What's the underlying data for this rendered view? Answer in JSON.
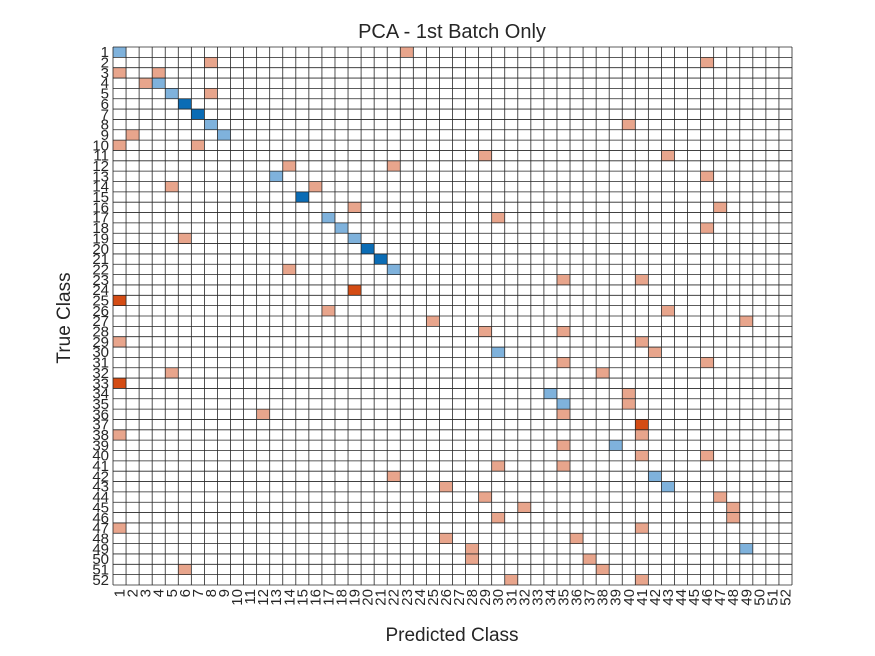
{
  "chart_data": {
    "type": "heatmap",
    "title": "PCA - 1st Batch Only",
    "xlabel": "Predicted Class",
    "ylabel": "True Class",
    "n_classes": 52,
    "x_ticks": [
      "1",
      "2",
      "3",
      "4",
      "5",
      "6",
      "7",
      "8",
      "9",
      "10",
      "11",
      "12",
      "13",
      "14",
      "15",
      "16",
      "17",
      "18",
      "19",
      "20",
      "21",
      "22",
      "23",
      "24",
      "25",
      "26",
      "27",
      "28",
      "29",
      "30",
      "31",
      "32",
      "33",
      "34",
      "35",
      "36",
      "37",
      "38",
      "39",
      "40",
      "41",
      "42",
      "43",
      "44",
      "45",
      "46",
      "47",
      "48",
      "49",
      "50",
      "51",
      "52"
    ],
    "y_ticks": [
      "1",
      "2",
      "3",
      "4",
      "5",
      "6",
      "7",
      "8",
      "9",
      "10",
      "11",
      "12",
      "13",
      "14",
      "15",
      "16",
      "17",
      "18",
      "19",
      "20",
      "21",
      "22",
      "23",
      "24",
      "25",
      "26",
      "27",
      "28",
      "29",
      "30",
      "31",
      "32",
      "33",
      "34",
      "35",
      "36",
      "37",
      "38",
      "39",
      "40",
      "41",
      "42",
      "43",
      "44",
      "45",
      "46",
      "47",
      "48",
      "49",
      "50",
      "51",
      "52"
    ],
    "grid": true,
    "colors": {
      "correct": [
        "#ffffff",
        "#7fb2dc",
        "#5a9fd4",
        "#0a6cb5"
      ],
      "wrong": [
        "#ffffff",
        "#e8a58c",
        "#d66a3e",
        "#d44c14"
      ],
      "gridline": "#262626"
    },
    "cells": [
      {
        "true": 1,
        "pred": 1,
        "level": 1
      },
      {
        "true": 1,
        "pred": 23,
        "level": 1
      },
      {
        "true": 2,
        "pred": 8,
        "level": 1
      },
      {
        "true": 2,
        "pred": 46,
        "level": 1
      },
      {
        "true": 3,
        "pred": 1,
        "level": 1
      },
      {
        "true": 3,
        "pred": 4,
        "level": 1
      },
      {
        "true": 4,
        "pred": 3,
        "level": 1
      },
      {
        "true": 4,
        "pred": 4,
        "level": 1
      },
      {
        "true": 5,
        "pred": 5,
        "level": 1
      },
      {
        "true": 5,
        "pred": 8,
        "level": 1
      },
      {
        "true": 6,
        "pred": 6,
        "level": 3
      },
      {
        "true": 7,
        "pred": 7,
        "level": 3
      },
      {
        "true": 8,
        "pred": 8,
        "level": 1
      },
      {
        "true": 8,
        "pred": 40,
        "level": 1
      },
      {
        "true": 9,
        "pred": 2,
        "level": 1
      },
      {
        "true": 9,
        "pred": 9,
        "level": 1
      },
      {
        "true": 10,
        "pred": 1,
        "level": 1
      },
      {
        "true": 10,
        "pred": 7,
        "level": 1
      },
      {
        "true": 11,
        "pred": 29,
        "level": 1
      },
      {
        "true": 11,
        "pred": 43,
        "level": 1
      },
      {
        "true": 12,
        "pred": 14,
        "level": 1
      },
      {
        "true": 12,
        "pred": 22,
        "level": 1
      },
      {
        "true": 13,
        "pred": 13,
        "level": 1
      },
      {
        "true": 13,
        "pred": 46,
        "level": 1
      },
      {
        "true": 14,
        "pred": 5,
        "level": 1
      },
      {
        "true": 14,
        "pred": 16,
        "level": 1
      },
      {
        "true": 15,
        "pred": 15,
        "level": 3
      },
      {
        "true": 16,
        "pred": 19,
        "level": 1
      },
      {
        "true": 16,
        "pred": 47,
        "level": 1
      },
      {
        "true": 17,
        "pred": 17,
        "level": 1
      },
      {
        "true": 17,
        "pred": 30,
        "level": 1
      },
      {
        "true": 18,
        "pred": 18,
        "level": 1
      },
      {
        "true": 18,
        "pred": 46,
        "level": 1
      },
      {
        "true": 19,
        "pred": 6,
        "level": 1
      },
      {
        "true": 19,
        "pred": 19,
        "level": 1
      },
      {
        "true": 20,
        "pred": 20,
        "level": 3
      },
      {
        "true": 21,
        "pred": 21,
        "level": 3
      },
      {
        "true": 22,
        "pred": 14,
        "level": 1
      },
      {
        "true": 22,
        "pred": 22,
        "level": 1
      },
      {
        "true": 23,
        "pred": 35,
        "level": 1
      },
      {
        "true": 23,
        "pred": 41,
        "level": 1
      },
      {
        "true": 24,
        "pred": 19,
        "level": 3
      },
      {
        "true": 25,
        "pred": 1,
        "level": 3
      },
      {
        "true": 26,
        "pred": 17,
        "level": 1
      },
      {
        "true": 26,
        "pred": 43,
        "level": 1
      },
      {
        "true": 27,
        "pred": 25,
        "level": 1
      },
      {
        "true": 27,
        "pred": 49,
        "level": 1
      },
      {
        "true": 28,
        "pred": 29,
        "level": 1
      },
      {
        "true": 28,
        "pred": 35,
        "level": 1
      },
      {
        "true": 29,
        "pred": 1,
        "level": 1
      },
      {
        "true": 29,
        "pred": 41,
        "level": 1
      },
      {
        "true": 30,
        "pred": 30,
        "level": 1
      },
      {
        "true": 30,
        "pred": 42,
        "level": 1
      },
      {
        "true": 31,
        "pred": 35,
        "level": 1
      },
      {
        "true": 31,
        "pred": 46,
        "level": 1
      },
      {
        "true": 32,
        "pred": 5,
        "level": 1
      },
      {
        "true": 32,
        "pred": 38,
        "level": 1
      },
      {
        "true": 33,
        "pred": 1,
        "level": 3
      },
      {
        "true": 34,
        "pred": 34,
        "level": 1
      },
      {
        "true": 34,
        "pred": 40,
        "level": 1
      },
      {
        "true": 35,
        "pred": 35,
        "level": 1
      },
      {
        "true": 35,
        "pred": 40,
        "level": 1
      },
      {
        "true": 36,
        "pred": 12,
        "level": 1
      },
      {
        "true": 36,
        "pred": 35,
        "level": 1
      },
      {
        "true": 37,
        "pred": 41,
        "level": 3
      },
      {
        "true": 38,
        "pred": 1,
        "level": 1
      },
      {
        "true": 38,
        "pred": 41,
        "level": 1
      },
      {
        "true": 39,
        "pred": 35,
        "level": 1
      },
      {
        "true": 39,
        "pred": 39,
        "level": 1
      },
      {
        "true": 40,
        "pred": 41,
        "level": 1
      },
      {
        "true": 40,
        "pred": 46,
        "level": 1
      },
      {
        "true": 41,
        "pred": 30,
        "level": 1
      },
      {
        "true": 41,
        "pred": 35,
        "level": 1
      },
      {
        "true": 42,
        "pred": 22,
        "level": 1
      },
      {
        "true": 42,
        "pred": 42,
        "level": 1
      },
      {
        "true": 43,
        "pred": 26,
        "level": 1
      },
      {
        "true": 43,
        "pred": 43,
        "level": 1
      },
      {
        "true": 44,
        "pred": 29,
        "level": 1
      },
      {
        "true": 44,
        "pred": 47,
        "level": 1
      },
      {
        "true": 45,
        "pred": 32,
        "level": 1
      },
      {
        "true": 45,
        "pred": 48,
        "level": 1
      },
      {
        "true": 46,
        "pred": 30,
        "level": 1
      },
      {
        "true": 46,
        "pred": 48,
        "level": 1
      },
      {
        "true": 47,
        "pred": 1,
        "level": 1
      },
      {
        "true": 47,
        "pred": 41,
        "level": 1
      },
      {
        "true": 48,
        "pred": 26,
        "level": 1
      },
      {
        "true": 48,
        "pred": 36,
        "level": 1
      },
      {
        "true": 49,
        "pred": 28,
        "level": 1
      },
      {
        "true": 49,
        "pred": 49,
        "level": 1
      },
      {
        "true": 50,
        "pred": 28,
        "level": 1
      },
      {
        "true": 50,
        "pred": 37,
        "level": 1
      },
      {
        "true": 51,
        "pred": 6,
        "level": 1
      },
      {
        "true": 51,
        "pred": 38,
        "level": 1
      },
      {
        "true": 52,
        "pred": 31,
        "level": 1
      },
      {
        "true": 52,
        "pred": 41,
        "level": 1
      }
    ]
  }
}
